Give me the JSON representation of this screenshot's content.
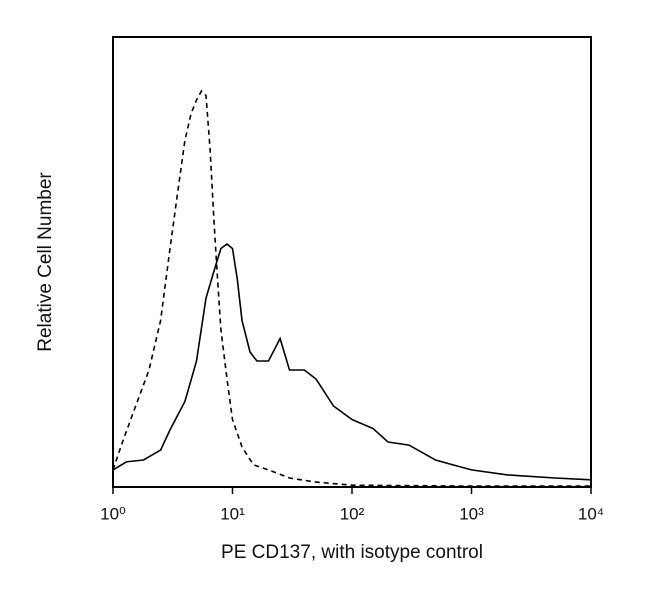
{
  "chart_data": {
    "type": "line",
    "x_label": "PE CD137, with isotype control",
    "y_label": "Relative Cell Number",
    "xscale": "log",
    "xlim": [
      1,
      10000
    ],
    "xticks": [
      {
        "value": 1,
        "label": "10⁰"
      },
      {
        "value": 10,
        "label": "10¹"
      },
      {
        "value": 100,
        "label": "10²"
      },
      {
        "value": 1000,
        "label": "10³"
      },
      {
        "value": 10000,
        "label": "10⁴"
      }
    ],
    "ylim": [
      0,
      100
    ],
    "series": [
      {
        "style": "solid",
        "color": "#000000",
        "x": [
          1,
          1.3,
          1.8,
          2.5,
          3,
          4,
          5,
          6,
          7,
          8,
          9,
          10,
          11,
          12,
          14,
          16,
          20,
          25,
          30,
          40,
          50,
          70,
          100,
          150,
          200,
          300,
          500,
          700,
          1000,
          2000,
          5000,
          10000
        ],
        "values": [
          3.8,
          5.6,
          6,
          8.2,
          12.7,
          19,
          28,
          42,
          48,
          53,
          54,
          53,
          46,
          37,
          30,
          28,
          28,
          33,
          26,
          26,
          24,
          18,
          15,
          13,
          10,
          9.3,
          6,
          4.9,
          3.8,
          2.7,
          2,
          1.6
        ]
      },
      {
        "style": "dashed",
        "color": "#000000",
        "x": [
          1,
          1.2,
          1.5,
          2,
          2.5,
          3,
          3.5,
          4,
          4.5,
          5,
          5.5,
          6,
          6.5,
          7,
          7.5,
          8,
          9,
          10,
          12,
          15,
          20,
          30,
          50,
          100,
          1000,
          10000
        ],
        "values": [
          3.8,
          10,
          17,
          26,
          37,
          53,
          66,
          77,
          83,
          86,
          88,
          87,
          75,
          59,
          46,
          35,
          24,
          15,
          8.9,
          4.9,
          3.8,
          2,
          1.1,
          0.4,
          0.2,
          0.2
        ]
      }
    ]
  }
}
